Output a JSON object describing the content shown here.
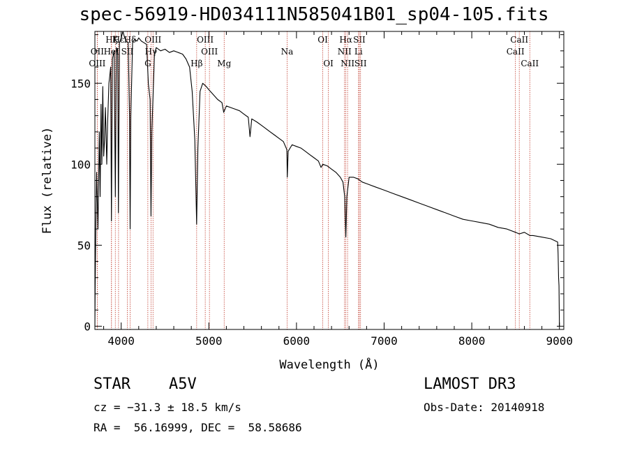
{
  "title": "spec-56919-HD034111N585041B01_sp04-105.fits",
  "chart_data": {
    "type": "line",
    "title": "spec-56919-HD034111N585041B01_sp04-105.fits",
    "xlabel": "Wavelength (Å)",
    "ylabel": "Flux (relative)",
    "xlim": [
      3700,
      9050
    ],
    "ylim": [
      -2,
      182
    ],
    "x_ticks": [
      4000,
      5000,
      6000,
      7000,
      8000,
      9000
    ],
    "y_ticks": [
      0,
      50,
      100,
      150
    ],
    "series": [
      {
        "name": "spectrum",
        "points": [
          [
            3700,
            0
          ],
          [
            3703,
            25
          ],
          [
            3710,
            60
          ],
          [
            3720,
            95
          ],
          [
            3735,
            60
          ],
          [
            3750,
            120
          ],
          [
            3760,
            80
          ],
          [
            3770,
            137
          ],
          [
            3780,
            100
          ],
          [
            3790,
            148
          ],
          [
            3800,
            105
          ],
          [
            3810,
            115
          ],
          [
            3820,
            135
          ],
          [
            3835,
            100
          ],
          [
            3845,
            125
          ],
          [
            3860,
            150
          ],
          [
            3870,
            155
          ],
          [
            3880,
            160
          ],
          [
            3889,
            65
          ],
          [
            3900,
            165
          ],
          [
            3920,
            170
          ],
          [
            3933,
            80
          ],
          [
            3945,
            172
          ],
          [
            3960,
            168
          ],
          [
            3968,
            70
          ],
          [
            3980,
            175
          ],
          [
            4000,
            178
          ],
          [
            4020,
            182
          ],
          [
            4040,
            178
          ],
          [
            4060,
            176
          ],
          [
            4080,
            175
          ],
          [
            4095,
            130
          ],
          [
            4102,
            60
          ],
          [
            4110,
            130
          ],
          [
            4130,
            175
          ],
          [
            4150,
            177
          ],
          [
            4180,
            176
          ],
          [
            4200,
            178
          ],
          [
            4230,
            176
          ],
          [
            4260,
            175
          ],
          [
            4290,
            174
          ],
          [
            4310,
            150
          ],
          [
            4330,
            140
          ],
          [
            4340,
            68
          ],
          [
            4350,
            120
          ],
          [
            4380,
            168
          ],
          [
            4400,
            172
          ],
          [
            4450,
            170
          ],
          [
            4500,
            171
          ],
          [
            4550,
            169
          ],
          [
            4600,
            170
          ],
          [
            4650,
            169
          ],
          [
            4700,
            168
          ],
          [
            4740,
            165
          ],
          [
            4780,
            160
          ],
          [
            4810,
            145
          ],
          [
            4840,
            115
          ],
          [
            4861,
            63
          ],
          [
            4875,
            110
          ],
          [
            4900,
            145
          ],
          [
            4930,
            150
          ],
          [
            4970,
            148
          ],
          [
            5000,
            146
          ],
          [
            5050,
            143
          ],
          [
            5100,
            140
          ],
          [
            5150,
            138
          ],
          [
            5170,
            132
          ],
          [
            5200,
            136
          ],
          [
            5250,
            135
          ],
          [
            5300,
            134
          ],
          [
            5350,
            133
          ],
          [
            5400,
            131
          ],
          [
            5450,
            129
          ],
          [
            5470,
            117
          ],
          [
            5490,
            128
          ],
          [
            5550,
            126
          ],
          [
            5600,
            124
          ],
          [
            5650,
            122
          ],
          [
            5700,
            120
          ],
          [
            5750,
            118
          ],
          [
            5800,
            116
          ],
          [
            5850,
            114
          ],
          [
            5890,
            109
          ],
          [
            5895,
            92
          ],
          [
            5905,
            108
          ],
          [
            5950,
            112
          ],
          [
            6000,
            111
          ],
          [
            6050,
            110
          ],
          [
            6100,
            108
          ],
          [
            6150,
            106
          ],
          [
            6200,
            104
          ],
          [
            6250,
            102
          ],
          [
            6280,
            98
          ],
          [
            6300,
            100
          ],
          [
            6350,
            99
          ],
          [
            6400,
            97
          ],
          [
            6450,
            95
          ],
          [
            6500,
            92
          ],
          [
            6530,
            89
          ],
          [
            6550,
            80
          ],
          [
            6563,
            55
          ],
          [
            6575,
            80
          ],
          [
            6600,
            92
          ],
          [
            6650,
            92
          ],
          [
            6700,
            91
          ],
          [
            6750,
            89
          ],
          [
            6800,
            88
          ],
          [
            6900,
            86
          ],
          [
            7000,
            84
          ],
          [
            7100,
            82
          ],
          [
            7200,
            80
          ],
          [
            7300,
            78
          ],
          [
            7400,
            76
          ],
          [
            7500,
            74
          ],
          [
            7600,
            72
          ],
          [
            7700,
            70
          ],
          [
            7800,
            68
          ],
          [
            7900,
            66
          ],
          [
            8000,
            65
          ],
          [
            8100,
            64
          ],
          [
            8200,
            63
          ],
          [
            8300,
            61
          ],
          [
            8400,
            60
          ],
          [
            8498,
            58
          ],
          [
            8542,
            57
          ],
          [
            8600,
            58
          ],
          [
            8662,
            56
          ],
          [
            8700,
            56
          ],
          [
            8800,
            55
          ],
          [
            8900,
            54
          ],
          [
            8980,
            52
          ],
          [
            8985,
            45
          ],
          [
            8990,
            30
          ],
          [
            8995,
            25
          ],
          [
            9000,
            0
          ]
        ]
      }
    ],
    "lines": [
      {
        "name": "Hε",
        "x": 3970,
        "row": 1
      },
      {
        "name": "OII",
        "x": 3727,
        "row": 2
      },
      {
        "name": "OIII",
        "x": 3727,
        "row": 3
      },
      {
        "name": "Hζ",
        "x": 3889,
        "row": 1
      },
      {
        "name": "K",
        "x": 3933,
        "row": 1
      },
      {
        "name": "Hδ",
        "x": 4102,
        "row": 1
      },
      {
        "name": "OIII",
        "x": 4363,
        "row": 1
      },
      {
        "name": "HeI",
        "x": 3889,
        "row": 2
      },
      {
        "name": "SII",
        "x": 4070,
        "row": 2
      },
      {
        "name": "Hγ",
        "x": 4340,
        "row": 2
      },
      {
        "name": "G",
        "x": 4304,
        "row": 3
      },
      {
        "name": "Hβ",
        "x": 4861,
        "row": 3
      },
      {
        "name": "OIII",
        "x": 4959,
        "row": 1
      },
      {
        "name": "OIII",
        "x": 5007,
        "row": 2
      },
      {
        "name": "Mg",
        "x": 5175,
        "row": 3
      },
      {
        "name": "Na",
        "x": 5893,
        "row": 2
      },
      {
        "name": "OI",
        "x": 6300,
        "row": 1
      },
      {
        "name": "OI",
        "x": 6364,
        "row": 3
      },
      {
        "name": "Hα",
        "x": 6563,
        "row": 1
      },
      {
        "name": "SII",
        "x": 6717,
        "row": 1
      },
      {
        "name": "NII",
        "x": 6548,
        "row": 2
      },
      {
        "name": "Li",
        "x": 6708,
        "row": 2
      },
      {
        "name": "NII",
        "x": 6583,
        "row": 3
      },
      {
        "name": "SII",
        "x": 6731,
        "row": 3
      },
      {
        "name": "CaII",
        "x": 8542,
        "row": 1
      },
      {
        "name": "CaII",
        "x": 8498,
        "row": 2
      },
      {
        "name": "CaII",
        "x": 8662,
        "row": 3
      }
    ]
  },
  "info": {
    "class_label": "STAR",
    "subclass": "A5V",
    "survey": "LAMOST DR3",
    "cz": "cz = −31.3 ± 18.5 km/s",
    "obs_date": "Obs-Date: 20140918",
    "radec": "RA =  56.16999, DEC =  58.58686"
  }
}
